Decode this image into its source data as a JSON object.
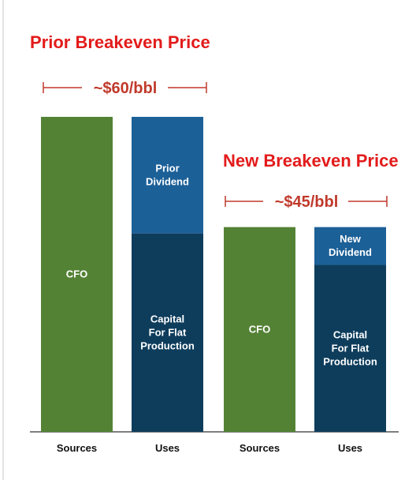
{
  "chart_data": {
    "type": "stacked-bar",
    "groups": [
      {
        "title": "Prior Breakeven Price",
        "price_label": "~$60/bbl",
        "bars": [
          {
            "category": "Sources",
            "segments": [
              {
                "label": "CFO",
                "value": 100,
                "color": "#548235"
              }
            ]
          },
          {
            "category": "Uses",
            "segments": [
              {
                "label": "Capital For Flat Production",
                "lines": [
                  "Capital",
                  "For Flat",
                  "Production"
                ],
                "value": 63,
                "color": "#0e3d5c"
              },
              {
                "label": "Prior Dividend",
                "lines": [
                  "Prior",
                  "Dividend"
                ],
                "value": 37,
                "color": "#1c6098"
              }
            ]
          }
        ]
      },
      {
        "title": "New Breakeven Price",
        "price_label": "~$45/bbl",
        "bars": [
          {
            "category": "Sources",
            "segments": [
              {
                "label": "CFO",
                "value": 65,
                "color": "#548235"
              }
            ]
          },
          {
            "category": "Uses",
            "segments": [
              {
                "label": "Capital For Flat Production",
                "lines": [
                  "Capital",
                  "For Flat",
                  "Production"
                ],
                "value": 53,
                "color": "#0e3d5c"
              },
              {
                "label": "New Dividend",
                "lines": [
                  "New",
                  "Dividend"
                ],
                "value": 12,
                "color": "#1c6098"
              }
            ]
          }
        ]
      }
    ],
    "ylim": [
      0,
      100
    ]
  },
  "colors": {
    "title": "#e31b1b",
    "price": "#c0392b",
    "axis": "#111111"
  }
}
